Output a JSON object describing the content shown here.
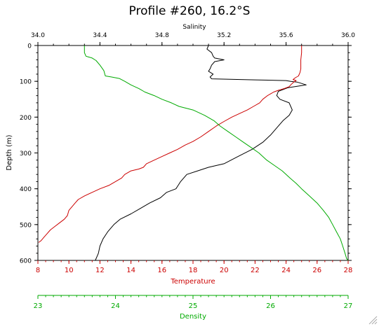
{
  "chart_data": {
    "type": "line",
    "title": "Profile #260, 16.2°S",
    "y_axis": {
      "label": "Depth (m)",
      "range": [
        0,
        600
      ],
      "inverted": true,
      "ticks": [
        0,
        100,
        200,
        300,
        400,
        500,
        600
      ],
      "tick_labels": [
        "0",
        "100",
        "200",
        "300",
        "400",
        "500",
        "600"
      ]
    },
    "axes": {
      "salinity": {
        "label": "Salinity",
        "position": "top",
        "range": [
          34.0,
          36.0
        ],
        "ticks": [
          34.0,
          34.4,
          34.8,
          35.2,
          35.6,
          36.0
        ],
        "tick_labels": [
          "34.0",
          "34.4",
          "34.8",
          "35.2",
          "35.6",
          "36.0"
        ],
        "color": "#000000"
      },
      "temperature": {
        "label": "Temperature",
        "position": "bottom",
        "range": [
          8,
          28
        ],
        "ticks": [
          8,
          10,
          12,
          14,
          16,
          18,
          20,
          22,
          24,
          26,
          28
        ],
        "tick_labels": [
          "8",
          "10",
          "12",
          "14",
          "16",
          "18",
          "20",
          "22",
          "24",
          "26",
          "28"
        ],
        "color": "#cc0000"
      },
      "density": {
        "label": "Density",
        "position": "bottom-offset",
        "range": [
          23,
          27
        ],
        "ticks": [
          23,
          24,
          25,
          26,
          27
        ],
        "tick_labels": [
          "23",
          "24",
          "25",
          "26",
          "27"
        ],
        "color": "#00aa00"
      }
    },
    "series": [
      {
        "key": "salinity",
        "axis": "salinity",
        "color": "#000000",
        "points": [
          [
            35.1,
            0
          ],
          [
            35.09,
            10
          ],
          [
            35.12,
            20
          ],
          [
            35.13,
            30
          ],
          [
            35.14,
            35
          ],
          [
            35.2,
            40
          ],
          [
            35.14,
            45
          ],
          [
            35.12,
            55
          ],
          [
            35.11,
            65
          ],
          [
            35.1,
            72
          ],
          [
            35.13,
            80
          ],
          [
            35.11,
            88
          ],
          [
            35.12,
            93
          ],
          [
            35.4,
            96
          ],
          [
            35.6,
            98
          ],
          [
            35.63,
            100
          ],
          [
            35.67,
            102
          ],
          [
            35.7,
            106
          ],
          [
            35.73,
            110
          ],
          [
            35.61,
            118
          ],
          [
            35.55,
            128
          ],
          [
            35.54,
            140
          ],
          [
            35.56,
            150
          ],
          [
            35.62,
            160
          ],
          [
            35.63,
            170
          ],
          [
            35.64,
            180
          ],
          [
            35.62,
            195
          ],
          [
            35.58,
            210
          ],
          [
            35.54,
            230
          ],
          [
            35.5,
            250
          ],
          [
            35.45,
            270
          ],
          [
            35.38,
            290
          ],
          [
            35.29,
            310
          ],
          [
            35.2,
            330
          ],
          [
            35.1,
            340
          ],
          [
            35.03,
            350
          ],
          [
            34.96,
            360
          ],
          [
            34.92,
            380
          ],
          [
            34.89,
            400
          ],
          [
            34.83,
            410
          ],
          [
            34.79,
            425
          ],
          [
            34.72,
            440
          ],
          [
            34.66,
            455
          ],
          [
            34.6,
            470
          ],
          [
            34.53,
            485
          ],
          [
            34.49,
            500
          ],
          [
            34.45,
            520
          ],
          [
            34.42,
            540
          ],
          [
            34.4,
            560
          ],
          [
            34.39,
            580
          ],
          [
            34.38,
            590
          ],
          [
            34.37,
            600
          ]
        ]
      },
      {
        "key": "temperature",
        "axis": "temperature",
        "color": "#cc0000",
        "points": [
          [
            25.0,
            0
          ],
          [
            25.0,
            20
          ],
          [
            24.95,
            40
          ],
          [
            24.95,
            55
          ],
          [
            24.95,
            65
          ],
          [
            24.9,
            75
          ],
          [
            24.8,
            85
          ],
          [
            24.6,
            90
          ],
          [
            24.45,
            95
          ],
          [
            24.65,
            98
          ],
          [
            24.5,
            102
          ],
          [
            24.4,
            106
          ],
          [
            24.3,
            110
          ],
          [
            24.2,
            115
          ],
          [
            23.9,
            120
          ],
          [
            23.5,
            125
          ],
          [
            23.2,
            130
          ],
          [
            23.0,
            135
          ],
          [
            22.8,
            140
          ],
          [
            22.5,
            150
          ],
          [
            22.3,
            160
          ],
          [
            21.9,
            170
          ],
          [
            21.5,
            180
          ],
          [
            21.0,
            190
          ],
          [
            20.5,
            200
          ],
          [
            20.0,
            212
          ],
          [
            19.5,
            225
          ],
          [
            19.0,
            240
          ],
          [
            18.5,
            255
          ],
          [
            18.0,
            268
          ],
          [
            17.5,
            278
          ],
          [
            17.0,
            290
          ],
          [
            16.5,
            300
          ],
          [
            16.0,
            310
          ],
          [
            15.5,
            320
          ],
          [
            15.0,
            330
          ],
          [
            14.8,
            340
          ],
          [
            14.5,
            345
          ],
          [
            14.0,
            350
          ],
          [
            13.6,
            360
          ],
          [
            13.4,
            370
          ],
          [
            13.0,
            380
          ],
          [
            12.6,
            390
          ],
          [
            12.0,
            400
          ],
          [
            11.5,
            410
          ],
          [
            11.0,
            420
          ],
          [
            10.6,
            430
          ],
          [
            10.4,
            440
          ],
          [
            10.2,
            450
          ],
          [
            10.0,
            460
          ],
          [
            9.9,
            475
          ],
          [
            9.7,
            485
          ],
          [
            9.4,
            495
          ],
          [
            9.1,
            505
          ],
          [
            8.8,
            515
          ],
          [
            8.6,
            525
          ],
          [
            8.4,
            535
          ],
          [
            8.2,
            545
          ],
          [
            8.05,
            550
          ]
        ]
      },
      {
        "key": "density",
        "axis": "density",
        "color": "#00aa00",
        "points": [
          [
            23.6,
            0
          ],
          [
            23.6,
            20
          ],
          [
            23.62,
            30
          ],
          [
            23.7,
            35
          ],
          [
            23.75,
            42
          ],
          [
            23.8,
            55
          ],
          [
            23.85,
            70
          ],
          [
            23.87,
            85
          ],
          [
            23.95,
            88
          ],
          [
            24.05,
            92
          ],
          [
            24.12,
            100
          ],
          [
            24.2,
            110
          ],
          [
            24.3,
            120
          ],
          [
            24.38,
            130
          ],
          [
            24.5,
            140
          ],
          [
            24.6,
            150
          ],
          [
            24.72,
            160
          ],
          [
            24.82,
            170
          ],
          [
            25.0,
            180
          ],
          [
            25.15,
            195
          ],
          [
            25.27,
            210
          ],
          [
            25.35,
            225
          ],
          [
            25.45,
            240
          ],
          [
            25.55,
            255
          ],
          [
            25.65,
            270
          ],
          [
            25.75,
            285
          ],
          [
            25.85,
            300
          ],
          [
            25.95,
            320
          ],
          [
            26.05,
            335
          ],
          [
            26.15,
            350
          ],
          [
            26.25,
            370
          ],
          [
            26.33,
            385
          ],
          [
            26.4,
            400
          ],
          [
            26.5,
            420
          ],
          [
            26.6,
            440
          ],
          [
            26.68,
            460
          ],
          [
            26.75,
            480
          ],
          [
            26.8,
            500
          ],
          [
            26.85,
            520
          ],
          [
            26.9,
            540
          ],
          [
            26.93,
            560
          ],
          [
            26.96,
            580
          ],
          [
            26.98,
            595
          ],
          [
            27.0,
            600
          ]
        ]
      }
    ]
  }
}
